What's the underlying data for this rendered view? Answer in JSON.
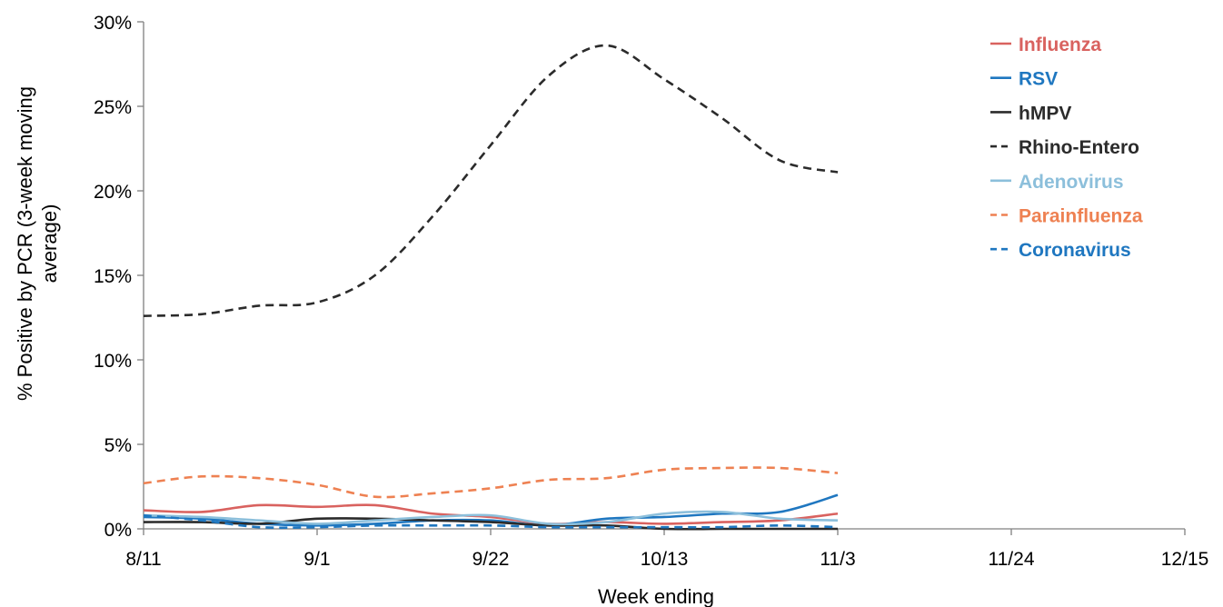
{
  "chart_data": {
    "type": "line",
    "title": "",
    "xlabel": "Week ending",
    "ylabel_line1": "% Positive by PCR (3-week moving",
    "ylabel_line2": "average)",
    "x_tick_labels": [
      "8/11",
      "9/1",
      "9/22",
      "10/13",
      "11/3",
      "11/24",
      "12/15"
    ],
    "y_tick_labels": [
      "0%",
      "5%",
      "10%",
      "15%",
      "20%",
      "25%",
      "30%"
    ],
    "ylim": [
      0,
      30
    ],
    "x": [
      "8/11",
      "8/18",
      "8/25",
      "9/1",
      "9/8",
      "9/15",
      "9/22",
      "9/29",
      "10/6",
      "10/13",
      "10/20",
      "10/27",
      "11/3"
    ],
    "xlim": [
      "8/11",
      "12/15"
    ],
    "grid": false,
    "legend_position": "top-right",
    "series": [
      {
        "name": "Influenza",
        "color": "#d9625f",
        "dash": "solid",
        "values": [
          1.1,
          1.0,
          1.4,
          1.3,
          1.4,
          0.9,
          0.7,
          0.3,
          0.4,
          0.3,
          0.4,
          0.5,
          0.9
        ]
      },
      {
        "name": "RSV",
        "color": "#1f77c0",
        "dash": "solid",
        "values": [
          0.7,
          0.6,
          0.3,
          0.2,
          0.3,
          0.5,
          0.5,
          0.2,
          0.6,
          0.7,
          0.9,
          1.0,
          2.0
        ]
      },
      {
        "name": "hMPV",
        "color": "#2b2b2b",
        "dash": "solid",
        "values": [
          0.4,
          0.4,
          0.3,
          0.6,
          0.6,
          0.5,
          0.4,
          0.2,
          0.2,
          0.0,
          0.0,
          0.0,
          0.0
        ]
      },
      {
        "name": "Rhino-Entero",
        "color": "#2b2b2b",
        "dash": "dashed",
        "values": [
          12.6,
          12.7,
          13.2,
          13.4,
          15.0,
          18.5,
          22.7,
          26.8,
          28.6,
          26.6,
          24.3,
          21.8,
          21.1
        ]
      },
      {
        "name": "Adenovirus",
        "color": "#8cbfdb",
        "dash": "solid",
        "values": [
          0.8,
          0.7,
          0.5,
          0.3,
          0.5,
          0.7,
          0.8,
          0.3,
          0.4,
          0.9,
          1.0,
          0.6,
          0.5
        ]
      },
      {
        "name": "Parainfluenza",
        "color": "#ee8152",
        "dash": "dashed",
        "values": [
          2.7,
          3.1,
          3.0,
          2.6,
          1.9,
          2.1,
          2.4,
          2.9,
          3.0,
          3.5,
          3.6,
          3.6,
          3.3
        ]
      },
      {
        "name": "Coronavirus",
        "color": "#1f77c0",
        "dash": "dashed",
        "values": [
          0.8,
          0.5,
          0.1,
          0.1,
          0.2,
          0.2,
          0.2,
          0.1,
          0.1,
          0.1,
          0.1,
          0.2,
          0.1
        ]
      }
    ]
  }
}
